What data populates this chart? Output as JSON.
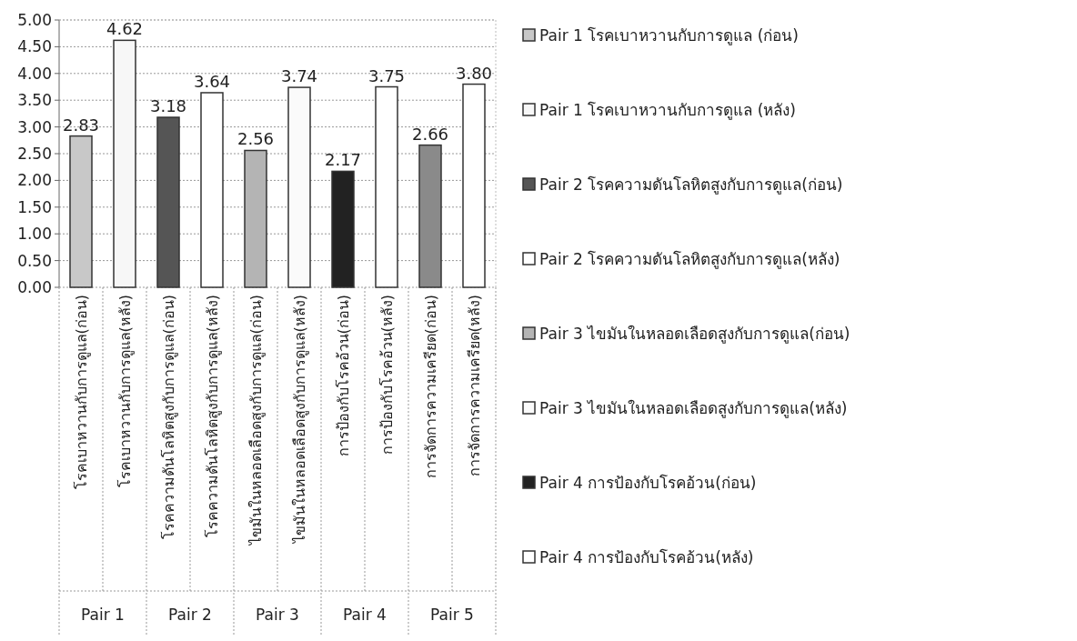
{
  "chart_data": {
    "type": "bar",
    "stacked": true,
    "categories": [
      "โรคเบาหวานกับการดูแล(ก่อน)",
      "โรคเบาหวานกับการดูแล(หลัง)",
      "โรคความดันโลหิตสูงกับการดูแล(ก่อน)",
      "โรคความดันโลหิตสูงกับการดูแล(หลัง)",
      "ไขมันในหลอดเลือดสูงกับการดูแล(ก่อน)",
      "ไขมันในหลอดเลือดสูงกับการดูแล(หลัง)",
      "การป้องกับโรคอ้วน(ก่อน)",
      "การป้องกับโรคอ้วน(หลัง)",
      "การจัดการความเครียด(ก่อน)",
      "การจัดการความเครียด(หลัง)"
    ],
    "series": [
      {
        "name": "Pair 1 โรคเบาหวานกับการดูแล (ก่อน)",
        "color": "#c8c8c8",
        "values": [
          2.83,
          null,
          null,
          null,
          null,
          null,
          null,
          null,
          null,
          null
        ],
        "value_labels": [
          "2.83",
          null,
          null,
          null,
          null,
          null,
          null,
          null,
          null,
          null
        ]
      },
      {
        "name": "Pair 1 โรคเบาหวานกับการดูแล (หลัง)",
        "color": "#f7f7f7",
        "values": [
          null,
          4.62,
          null,
          null,
          null,
          null,
          null,
          null,
          null,
          null
        ],
        "value_labels": [
          null,
          "4.62",
          null,
          null,
          null,
          null,
          null,
          null,
          null,
          null
        ]
      },
      {
        "name": "Pair 2 โรคความดันโลหิตสูงกับการดูแล(ก่อน)",
        "color": "#555555",
        "values": [
          null,
          null,
          3.18,
          null,
          null,
          null,
          null,
          null,
          null,
          null
        ],
        "value_labels": [
          null,
          null,
          "3.18",
          null,
          null,
          null,
          null,
          null,
          null,
          null
        ]
      },
      {
        "name": "Pair 2 โรคความดันโลหิตสูงกับการดูแล(หลัง)",
        "color": "#ffffff",
        "values": [
          null,
          null,
          null,
          3.64,
          null,
          null,
          null,
          null,
          null,
          null
        ],
        "value_labels": [
          null,
          null,
          null,
          "3.64",
          null,
          null,
          null,
          null,
          null,
          null
        ]
      },
      {
        "name": "Pair 3 ไขมันในหลอดเลือดสูงกับการดูแล(ก่อน)",
        "color": "#b4b4b4",
        "values": [
          null,
          null,
          null,
          null,
          2.56,
          null,
          null,
          null,
          null,
          null
        ],
        "value_labels": [
          null,
          null,
          null,
          null,
          "2.56",
          null,
          null,
          null,
          null,
          null
        ]
      },
      {
        "name": "Pair 3 ไขมันในหลอดเลือดสูงกับการดูแล(หลัง)",
        "color": "#fafafa",
        "values": [
          null,
          null,
          null,
          null,
          null,
          3.74,
          null,
          null,
          null,
          null
        ],
        "value_labels": [
          null,
          null,
          null,
          null,
          null,
          "3.74",
          null,
          null,
          null,
          null
        ]
      },
      {
        "name": "Pair 4 การป้องกับโรคอ้วน(ก่อน)",
        "color": "#222222",
        "values": [
          null,
          null,
          null,
          null,
          null,
          null,
          2.17,
          null,
          null,
          null
        ],
        "value_labels": [
          null,
          null,
          null,
          null,
          null,
          null,
          "2.17",
          null,
          null,
          null
        ]
      },
      {
        "name": "Pair 4 การป้องกับโรคอ้วน(หลัง)",
        "color": "#ffffff",
        "values": [
          null,
          null,
          null,
          null,
          null,
          null,
          null,
          3.75,
          null,
          null
        ],
        "value_labels": [
          null,
          null,
          null,
          null,
          null,
          null,
          null,
          "3.75",
          null,
          null
        ]
      },
      {
        "color": "#8a8a8a",
        "values": [
          null,
          null,
          null,
          null,
          null,
          null,
          null,
          null,
          2.66,
          null
        ],
        "value_labels": [
          null,
          null,
          null,
          null,
          null,
          null,
          null,
          null,
          "2.66",
          null
        ]
      },
      {
        "color": "#ffffff",
        "values": [
          null,
          null,
          null,
          null,
          null,
          null,
          null,
          null,
          null,
          3.8
        ],
        "value_labels": [
          null,
          null,
          null,
          null,
          null,
          null,
          null,
          null,
          null,
          "3.80"
        ]
      }
    ],
    "ylim": [
      0,
      5
    ],
    "yticks": [
      {
        "value": 0,
        "label": "0.00"
      },
      {
        "value": 0.5,
        "label": "0.50"
      },
      {
        "value": 1,
        "label": "1.00"
      },
      {
        "value": 1.5,
        "label": "1.50"
      },
      {
        "value": 2,
        "label": "2.00"
      },
      {
        "value": 2.5,
        "label": "2.50"
      },
      {
        "value": 3,
        "label": "3.00"
      },
      {
        "value": 3.5,
        "label": "3.50"
      },
      {
        "value": 4,
        "label": "4.00"
      },
      {
        "value": 4.5,
        "label": "4.50"
      },
      {
        "value": 5,
        "label": "5.00"
      }
    ],
    "grid": "y",
    "legend": "right",
    "annotations": [
      "Pair 1",
      "Pair 2",
      "Pair 3",
      "Pair 4",
      "Pair 5"
    ]
  }
}
